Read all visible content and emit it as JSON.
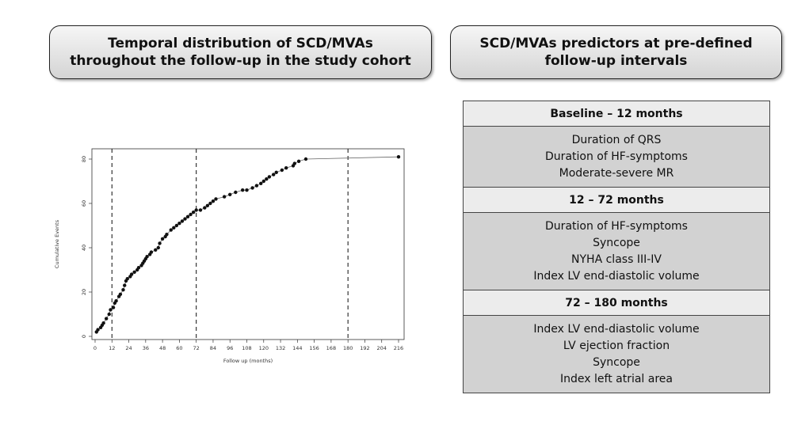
{
  "panels": {
    "left_title": "Temporal distribution of SCD/MVAs\nthroughout the follow-up in the study cohort",
    "right_title": "SCD/MVAs predictors at pre-defined\nfollow-up intervals"
  },
  "chart_data": {
    "type": "line",
    "xlabel": "Follow up (months)",
    "ylabel": "Cumulative Events",
    "xlim": [
      0,
      216
    ],
    "ylim": [
      0,
      82
    ],
    "xticks": [
      0,
      12,
      24,
      36,
      48,
      60,
      72,
      84,
      96,
      108,
      120,
      132,
      144,
      156,
      168,
      180,
      192,
      204,
      216
    ],
    "yticks": [
      0,
      20,
      40,
      60,
      80
    ],
    "vlines": [
      12,
      72,
      180
    ],
    "grid": false,
    "points": [
      [
        1,
        2
      ],
      [
        2,
        3
      ],
      [
        4,
        4
      ],
      [
        5,
        5
      ],
      [
        6,
        6
      ],
      [
        8,
        8
      ],
      [
        10,
        10
      ],
      [
        11,
        12
      ],
      [
        13,
        13
      ],
      [
        14,
        15
      ],
      [
        15,
        16
      ],
      [
        17,
        18
      ],
      [
        18,
        19
      ],
      [
        20,
        21
      ],
      [
        21,
        23
      ],
      [
        22,
        25
      ],
      [
        23,
        26
      ],
      [
        25,
        27
      ],
      [
        26,
        28
      ],
      [
        28,
        29
      ],
      [
        30,
        30
      ],
      [
        31,
        31
      ],
      [
        33,
        32
      ],
      [
        34,
        33
      ],
      [
        35,
        34
      ],
      [
        36,
        35
      ],
      [
        37,
        36
      ],
      [
        39,
        37
      ],
      [
        40,
        38
      ],
      [
        43,
        39
      ],
      [
        45,
        40
      ],
      [
        46,
        42
      ],
      [
        48,
        44
      ],
      [
        50,
        45
      ],
      [
        51,
        46
      ],
      [
        54,
        48
      ],
      [
        56,
        49
      ],
      [
        58,
        50
      ],
      [
        60,
        51
      ],
      [
        62,
        52
      ],
      [
        64,
        53
      ],
      [
        66,
        54
      ],
      [
        68,
        55
      ],
      [
        70,
        56
      ],
      [
        72,
        57
      ],
      [
        75,
        57
      ],
      [
        78,
        58
      ],
      [
        80,
        59
      ],
      [
        82,
        60
      ],
      [
        84,
        61
      ],
      [
        86,
        62
      ],
      [
        92,
        63
      ],
      [
        96,
        64
      ],
      [
        100,
        65
      ],
      [
        105,
        66
      ],
      [
        108,
        66
      ],
      [
        112,
        67
      ],
      [
        115,
        68
      ],
      [
        118,
        69
      ],
      [
        120,
        70
      ],
      [
        122,
        71
      ],
      [
        124,
        72
      ],
      [
        127,
        73
      ],
      [
        129,
        74
      ],
      [
        133,
        75
      ],
      [
        136,
        76
      ],
      [
        141,
        77
      ],
      [
        142,
        78
      ],
      [
        145,
        79
      ],
      [
        150,
        80
      ],
      [
        216,
        81
      ]
    ]
  },
  "intervals": [
    {
      "label": "Baseline – 12 months",
      "predictors": [
        "Duration of QRS",
        "Duration of HF-symptoms",
        "Moderate-severe MR"
      ]
    },
    {
      "label": "12 – 72 months",
      "predictors": [
        "Duration of HF-symptoms",
        "Syncope",
        "NYHA class III-IV",
        "Index LV end-diastolic volume"
      ]
    },
    {
      "label": "72 – 180 months",
      "predictors": [
        "Index LV end-diastolic volume",
        "LV ejection fraction",
        "Syncope",
        "Index left atrial area"
      ]
    }
  ]
}
